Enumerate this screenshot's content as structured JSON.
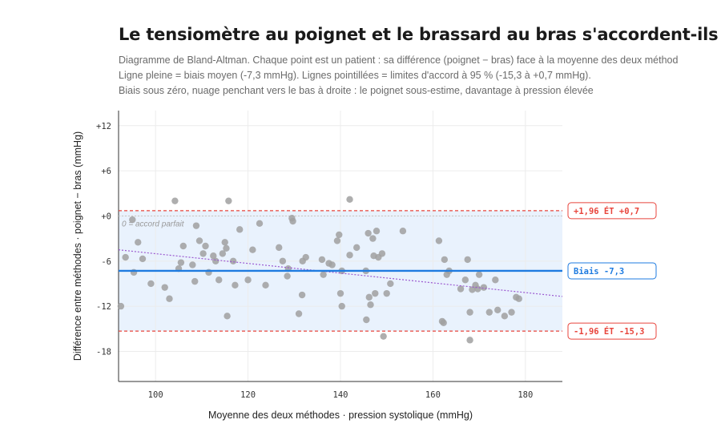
{
  "chart_data": {
    "type": "scatter",
    "title": "Le tensiomètre au poignet et le brassard au bras s'accordent-ils ?",
    "subtitle": [
      "Diagramme de Bland-Altman. Chaque point est un patient : sa différence (poignet − bras) face à la moyenne des deux méthod",
      "Ligne pleine = biais moyen (-7,3 mmHg). Lignes pointillées = limites d'accord à 95 % (-15,3 à +0,7 mmHg).",
      "Biais sous zéro, nuage penchant vers le bas à droite : le poignet sous-estime, davantage à pression élevée"
    ],
    "xlabel": "Moyenne des deux méthodes · pression systolique (mmHg)",
    "ylabel": "Différence entre méthodes · poignet − bras (mmHg)",
    "xlim": [
      92,
      188
    ],
    "ylim": [
      -22,
      14
    ],
    "x_ticks": [
      100,
      120,
      140,
      160,
      180
    ],
    "y_ticks": [
      12,
      6,
      0,
      -6,
      -12,
      -18
    ],
    "y_tick_labels": [
      "+12",
      "+6",
      "+0",
      "-6",
      "-12",
      "-18"
    ],
    "grid": true,
    "bias": -7.3,
    "loa_upper": 0.7,
    "loa_lower": -15.3,
    "zero_line_label": "0 = accord parfait",
    "bias_label": "Biais -7,3",
    "loa_upper_label": "+1,96 ÉT +0,7",
    "loa_lower_label": "-1,96 ÉT -15,3",
    "trend_line": {
      "x": [
        92,
        188
      ],
      "y": [
        -4.5,
        -10.7
      ]
    },
    "colors": {
      "points": "#a0a0a0",
      "bias": "#1e7be0",
      "loa": "#e8453c",
      "band": "#e9f2fd",
      "trend": "#9b59d0"
    },
    "points": [
      [
        92.5,
        -12.0
      ],
      [
        93.5,
        -5.5
      ],
      [
        95.0,
        -0.5
      ],
      [
        95.3,
        -7.5
      ],
      [
        96.2,
        -3.5
      ],
      [
        97.2,
        -5.7
      ],
      [
        99.0,
        -9.0
      ],
      [
        102.0,
        -9.5
      ],
      [
        103.0,
        -11.0
      ],
      [
        104.2,
        2.0
      ],
      [
        105.0,
        -7.0
      ],
      [
        105.5,
        -6.2
      ],
      [
        106.0,
        -4.0
      ],
      [
        108.0,
        -6.5
      ],
      [
        108.5,
        -8.7
      ],
      [
        108.8,
        -1.3
      ],
      [
        109.5,
        -3.3
      ],
      [
        110.3,
        -5.0
      ],
      [
        110.8,
        -4.0
      ],
      [
        111.5,
        -7.5
      ],
      [
        112.5,
        -5.3
      ],
      [
        113.0,
        -6.0
      ],
      [
        113.7,
        -8.5
      ],
      [
        114.5,
        -5.0
      ],
      [
        115.0,
        -3.5
      ],
      [
        115.3,
        -4.3
      ],
      [
        115.5,
        -13.3
      ],
      [
        115.8,
        2.0
      ],
      [
        116.8,
        -6.0
      ],
      [
        117.2,
        -9.2
      ],
      [
        118.2,
        -1.8
      ],
      [
        120.0,
        -8.5
      ],
      [
        121.0,
        -4.5
      ],
      [
        122.5,
        -1.0
      ],
      [
        123.8,
        -9.2
      ],
      [
        126.7,
        -4.2
      ],
      [
        127.5,
        -6.0
      ],
      [
        128.5,
        -8.0
      ],
      [
        128.7,
        -7.0
      ],
      [
        129.5,
        -0.3
      ],
      [
        129.7,
        -0.7
      ],
      [
        131.0,
        -13.0
      ],
      [
        131.7,
        -10.5
      ],
      [
        131.8,
        -6.0
      ],
      [
        132.5,
        -5.5
      ],
      [
        136.0,
        -5.8
      ],
      [
        136.3,
        -7.8
      ],
      [
        137.5,
        -6.3
      ],
      [
        138.2,
        -6.5
      ],
      [
        139.3,
        -3.3
      ],
      [
        139.7,
        -2.5
      ],
      [
        140.0,
        -10.3
      ],
      [
        140.3,
        -12.0
      ],
      [
        140.3,
        -7.3
      ],
      [
        142.0,
        -5.2
      ],
      [
        142.0,
        2.2
      ],
      [
        143.5,
        -4.2
      ],
      [
        145.5,
        -7.3
      ],
      [
        145.6,
        -13.8
      ],
      [
        146.0,
        -2.3
      ],
      [
        146.2,
        -10.8
      ],
      [
        146.5,
        -11.8
      ],
      [
        147.0,
        -3.0
      ],
      [
        147.2,
        -5.3
      ],
      [
        147.5,
        -10.3
      ],
      [
        147.8,
        -2.0
      ],
      [
        148.2,
        -5.5
      ],
      [
        149.0,
        -5.0
      ],
      [
        149.3,
        -16.0
      ],
      [
        150.0,
        -10.3
      ],
      [
        150.8,
        -9.0
      ],
      [
        153.5,
        -2.0
      ],
      [
        161.3,
        -3.3
      ],
      [
        162.0,
        -14.0
      ],
      [
        162.3,
        -14.2
      ],
      [
        162.5,
        -5.8
      ],
      [
        163.0,
        -7.8
      ],
      [
        163.5,
        -7.3
      ],
      [
        166.0,
        -9.7
      ],
      [
        167.0,
        -8.5
      ],
      [
        167.5,
        -5.8
      ],
      [
        168.0,
        -16.5
      ],
      [
        168.0,
        -12.8
      ],
      [
        168.5,
        -9.8
      ],
      [
        169.2,
        -9.2
      ],
      [
        169.7,
        -9.7
      ],
      [
        170.0,
        -7.8
      ],
      [
        171.0,
        -9.5
      ],
      [
        172.2,
        -12.8
      ],
      [
        173.5,
        -8.5
      ],
      [
        174.0,
        -12.5
      ],
      [
        175.5,
        -13.3
      ],
      [
        177.0,
        -12.8
      ],
      [
        178.0,
        -10.8
      ],
      [
        178.6,
        -11.0
      ]
    ]
  }
}
